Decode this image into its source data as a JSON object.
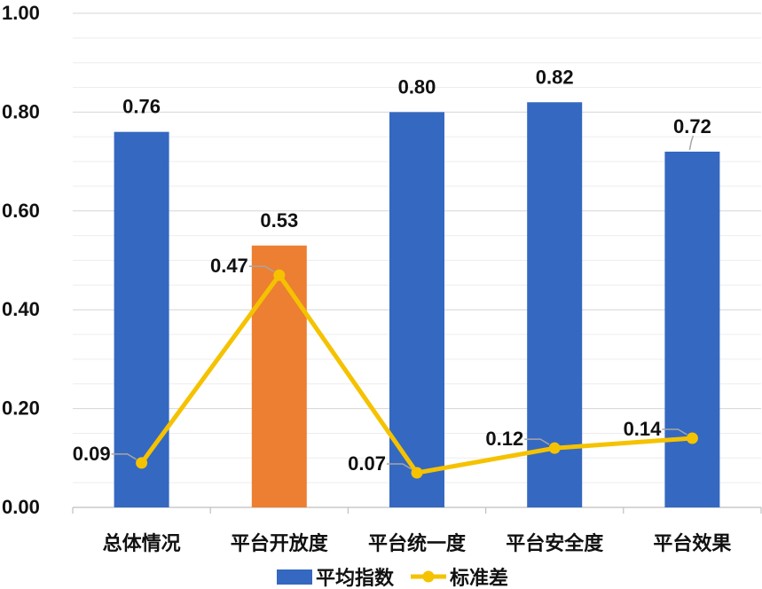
{
  "chart_data": {
    "type": "bar",
    "categories": [
      "总体情况",
      "平台开放度",
      "平台统一度",
      "平台安全度",
      "平台效果"
    ],
    "series": [
      {
        "name": "平均指数",
        "type": "bar",
        "values": [
          0.76,
          0.53,
          0.8,
          0.82,
          0.72
        ],
        "labels": [
          "0.76",
          "0.53",
          "0.80",
          "0.82",
          "0.72"
        ],
        "color": "#3568C0",
        "highlight_color": "#EC7F32",
        "highlight_index": 1
      },
      {
        "name": "标准差",
        "type": "line",
        "values": [
          0.09,
          0.47,
          0.07,
          0.12,
          0.14
        ],
        "labels": [
          "0.09",
          "0.47",
          "0.07",
          "0.12",
          "0.14"
        ],
        "color": "#F5C200"
      }
    ],
    "y_ticks": [
      "0.00",
      "0.20",
      "0.40",
      "0.60",
      "0.80",
      "1.00"
    ],
    "ylim": [
      0,
      1.0
    ],
    "grid": true,
    "legend_position": "bottom"
  }
}
